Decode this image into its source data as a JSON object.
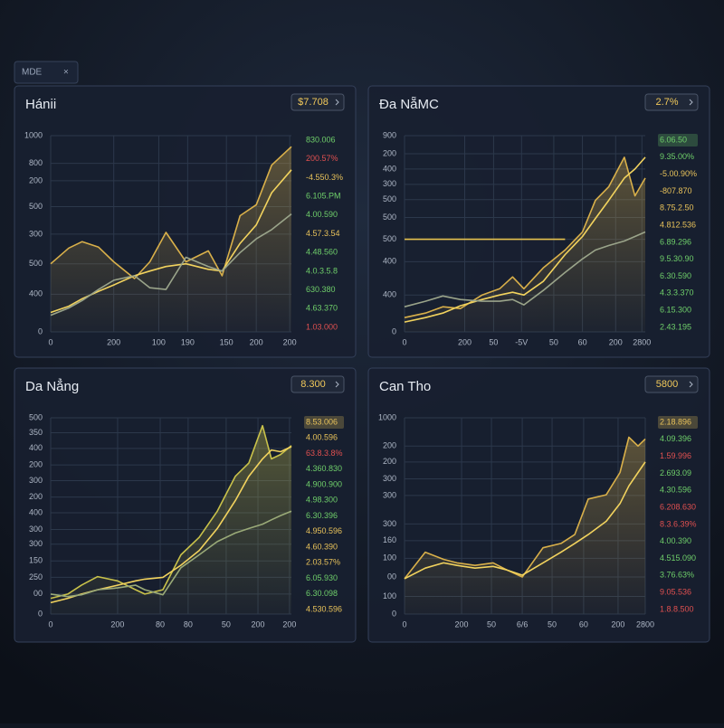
{
  "tab": {
    "label": "MDE",
    "close": "×"
  },
  "chart_data": [
    {
      "type": "line",
      "title": "Hánii",
      "badge": "$7.708",
      "xlim": [
        0,
        1000
      ],
      "ylim": [
        0,
        1000
      ],
      "grid": true,
      "xticks": [
        0,
        {
          "value": 262,
          "label": "200"
        },
        {
          "value": 449,
          "label": "100"
        },
        {
          "value": 569,
          "label": "190"
        },
        {
          "value": 730,
          "label": "150"
        },
        {
          "value": 854,
          "label": "200"
        },
        {
          "value": 993,
          "label": "200"
        }
      ],
      "yticks": [
        0,
        {
          "value": 192,
          "label": "400"
        },
        {
          "value": 347,
          "label": "500"
        },
        {
          "value": 498,
          "label": "300"
        },
        {
          "value": 638,
          "label": "500"
        },
        {
          "value": 770,
          "label": "200"
        },
        {
          "value": 859,
          "label": "800"
        },
        {
          "value": 1000,
          "label": "1000"
        }
      ],
      "x": [
        0,
        75,
        131,
        199,
        262,
        348,
        412,
        479,
        562,
        655,
        712,
        787,
        854,
        918,
        1000
      ],
      "series": [
        {
          "color": "#d9b04a",
          "area": true,
          "values": [
            347,
            427,
            460,
            432,
            357,
            272,
            357,
            507,
            357,
            413,
            286,
            592,
            648,
            850,
            944
          ]
        },
        {
          "color": "#f2d35e",
          "values": [
            99,
            131,
            169,
            207,
            239,
            286,
            310,
            333,
            347,
            319,
            310,
            451,
            545,
            709,
            826
          ]
        },
        {
          "color": "#9aa48a",
          "values": [
            85,
            122,
            160,
            216,
            263,
            286,
            225,
            216,
            380,
            333,
            310,
            404,
            474,
            521,
            601
          ]
        }
      ],
      "side_labels": [
        {
          "text": "830.006",
          "color": "#6fcf6a"
        },
        {
          "text": "200.57%",
          "color": "#e05050"
        },
        {
          "text": "-4.550.3%",
          "color": "#e8c25a"
        },
        {
          "text": "6.105.PM",
          "color": "#6fcf6a"
        },
        {
          "text": "4.00.590",
          "color": "#6fcf6a"
        },
        {
          "text": "4.57.3.54",
          "color": "#e8c25a"
        },
        {
          "text": "4.48.560",
          "color": "#6fcf6a"
        },
        {
          "text": "4.0.3.5.8",
          "color": "#6fcf6a"
        },
        {
          "text": "630.380",
          "color": "#6fcf6a"
        },
        {
          "text": "4.63.370",
          "color": "#6fcf6a"
        },
        {
          "text": "1.03.000",
          "color": "#e05050"
        }
      ]
    },
    {
      "type": "line",
      "title": "Đa NẵMC",
      "badge": "2.7%",
      "xlim": [
        0,
        1000
      ],
      "ylim": [
        0,
        1000
      ],
      "grid": true,
      "xticks": [
        0,
        {
          "value": 250,
          "label": "200"
        },
        {
          "value": 370,
          "label": "50"
        },
        {
          "value": 486,
          "label": "-5V"
        },
        {
          "value": 620,
          "label": "50"
        },
        {
          "value": 739,
          "label": "60"
        },
        {
          "value": 877,
          "label": "200"
        },
        {
          "value": 986,
          "label": "2800"
        }
      ],
      "yticks": [
        0,
        {
          "value": 188,
          "label": "400"
        },
        {
          "value": 358,
          "label": "400"
        },
        {
          "value": 472,
          "label": "500"
        },
        {
          "value": 583,
          "label": "500"
        },
        {
          "value": 674,
          "label": "500"
        },
        {
          "value": 752,
          "label": "300"
        },
        {
          "value": 830,
          "label": "400"
        },
        {
          "value": 908,
          "label": "200"
        },
        {
          "value": 1000,
          "label": "900"
        }
      ],
      "x": [
        0,
        87,
        159,
        232,
        322,
        395,
        449,
        496,
        576,
        667,
        739,
        793,
        848,
        913,
        957,
        1000
      ],
      "series": [
        {
          "color": "#d9b04a",
          "area": true,
          "values": [
            73,
            96,
            128,
            119,
            188,
            220,
            280,
            220,
            326,
            417,
            509,
            670,
            739,
            890,
            693,
            784
          ]
        },
        {
          "color": "#f2d35e",
          "values": [
            50,
            73,
            96,
            133,
            165,
            188,
            202,
            188,
            257,
            394,
            486,
            578,
            670,
            784,
            830,
            890
          ]
        },
        {
          "color": "#9aa48a",
          "values": [
            128,
            156,
            183,
            165,
            156,
            156,
            165,
            138,
            211,
            303,
            372,
            417,
            440,
            463,
            486,
            509
          ]
        },
        {
          "color": "#e6c24e",
          "values": [
            472,
            472,
            472,
            472,
            472,
            472,
            472,
            472,
            472,
            472,
            null,
            null,
            null,
            null,
            null,
            null
          ]
        }
      ],
      "side_labels": [
        {
          "text": "6.06.50",
          "color": "#6fcf6a",
          "boxed": true
        },
        {
          "text": "9.35.00%",
          "color": "#6fcf6a"
        },
        {
          "text": "-5.00.90%",
          "color": "#e8c25a"
        },
        {
          "text": "-807.870",
          "color": "#e8c25a"
        },
        {
          "text": "8.75.2.50",
          "color": "#e8c25a"
        },
        {
          "text": "4.812.536",
          "color": "#e8c25a"
        },
        {
          "text": "6.89.296",
          "color": "#6fcf6a"
        },
        {
          "text": "9.5.30.90",
          "color": "#6fcf6a"
        },
        {
          "text": "6.30.590",
          "color": "#6fcf6a"
        },
        {
          "text": "4.3.3.370",
          "color": "#6fcf6a"
        },
        {
          "text": "6.15.300",
          "color": "#6fcf6a"
        },
        {
          "text": "2.43.195",
          "color": "#6fcf6a"
        }
      ]
    },
    {
      "type": "line",
      "title": "Da Nẳng",
      "badge": "8.300",
      "xlim": [
        0,
        1000
      ],
      "ylim": [
        0,
        1000
      ],
      "grid": true,
      "xticks": [
        0,
        {
          "value": 278,
          "label": "200"
        },
        {
          "value": 455,
          "label": "80"
        },
        {
          "value": 571,
          "label": "80"
        },
        {
          "value": 729,
          "label": "50"
        },
        {
          "value": 861,
          "label": "200"
        },
        {
          "value": 992,
          "label": "200"
        }
      ],
      "yticks": [
        0,
        {
          "value": 102,
          "label": "00"
        },
        {
          "value": 187,
          "label": "250"
        },
        {
          "value": 271,
          "label": "150"
        },
        {
          "value": 356,
          "label": "300"
        },
        {
          "value": 431,
          "label": "300"
        },
        {
          "value": 516,
          "label": "400"
        },
        {
          "value": 596,
          "label": "200"
        },
        {
          "value": 680,
          "label": "300"
        },
        {
          "value": 760,
          "label": "200"
        },
        {
          "value": 844,
          "label": "400"
        },
        {
          "value": 924,
          "label": "350"
        },
        {
          "value": 1000,
          "label": "500"
        }
      ],
      "x": [
        0,
        71,
        128,
        195,
        278,
        353,
        391,
        466,
        541,
        617,
        692,
        767,
        823,
        880,
        917,
        955,
        1000
      ],
      "series": [
        {
          "color": "#c9c24a",
          "area": true,
          "values": [
            80,
            102,
            147,
            191,
            169,
            124,
            102,
            124,
            302,
            391,
            524,
            702,
            769,
            960,
            791,
            813,
            858
          ]
        },
        {
          "color": "#f2d35e",
          "values": [
            58,
            80,
            102,
            124,
            147,
            169,
            178,
            187,
            249,
            324,
            436,
            578,
            702,
            791,
            836,
            827,
            853
          ]
        },
        {
          "color": "#9aaa78",
          "values": [
            102,
            89,
            98,
            124,
            133,
            147,
            124,
            98,
            236,
            302,
            369,
            413,
            436,
            458,
            480,
            502,
            524
          ]
        }
      ],
      "side_labels": [
        {
          "text": "8.53.006",
          "color": "#e8c25a",
          "boxed": true
        },
        {
          "text": "4.00.596",
          "color": "#e8c25a"
        },
        {
          "text": "63.8.3.8%",
          "color": "#e05050"
        },
        {
          "text": "4.360.830",
          "color": "#6fcf6a"
        },
        {
          "text": "4.900.900",
          "color": "#6fcf6a"
        },
        {
          "text": "4.98.300",
          "color": "#6fcf6a"
        },
        {
          "text": "6.30.396",
          "color": "#6fcf6a"
        },
        {
          "text": "4.950.596",
          "color": "#e8c25a"
        },
        {
          "text": "4.60.390",
          "color": "#e8c25a"
        },
        {
          "text": "2.03.57%",
          "color": "#e8c25a"
        },
        {
          "text": "6.05.930",
          "color": "#6fcf6a"
        },
        {
          "text": "6.30.098",
          "color": "#6fcf6a"
        },
        {
          "text": "4.530.596",
          "color": "#e8c25a"
        }
      ]
    },
    {
      "type": "line",
      "title": "Can Tho",
      "badge": "5800",
      "xlim": [
        0,
        1000
      ],
      "ylim": [
        0,
        1000
      ],
      "grid": true,
      "xticks": [
        0,
        {
          "value": 237,
          "label": "200"
        },
        {
          "value": 361,
          "label": "50"
        },
        {
          "value": 489,
          "label": "6/6"
        },
        {
          "value": 613,
          "label": "50"
        },
        {
          "value": 744,
          "label": "60"
        },
        {
          "value": 887,
          "label": "200"
        },
        {
          "value": 1000,
          "label": "2800"
        }
      ],
      "yticks": [
        0,
        {
          "value": 90,
          "label": "100"
        },
        {
          "value": 189,
          "label": "00"
        },
        {
          "value": 284,
          "label": "100"
        },
        {
          "value": 374,
          "label": "160"
        },
        {
          "value": 459,
          "label": "300"
        },
        {
          "value": 604,
          "label": "300"
        },
        {
          "value": 689,
          "label": "300"
        },
        {
          "value": 775,
          "label": "200"
        },
        {
          "value": 856,
          "label": "200"
        },
        {
          "value": 1000,
          "label": "1000"
        }
      ],
      "x": [
        0,
        86,
        162,
        218,
        293,
        368,
        425,
        489,
        575,
        650,
        707,
        763,
        838,
        895,
        932,
        970,
        1000
      ],
      "series": [
        {
          "color": "#d9b04a",
          "area": true,
          "values": [
            180,
            315,
            279,
            261,
            248,
            261,
            225,
            189,
            338,
            360,
            405,
            586,
            608,
            721,
            901,
            856,
            892
          ]
        },
        {
          "color": "#f2d35e",
          "values": [
            180,
            234,
            261,
            248,
            234,
            243,
            225,
            198,
            261,
            315,
            360,
            405,
            473,
            563,
            653,
            721,
            775
          ]
        }
      ],
      "side_labels": [
        {
          "text": "2.18.896",
          "color": "#e8c25a",
          "boxed": true
        },
        {
          "text": "4.09.396",
          "color": "#6fcf6a"
        },
        {
          "text": "1.59.996",
          "color": "#e05050"
        },
        {
          "text": "2.693.09",
          "color": "#6fcf6a"
        },
        {
          "text": "4.30.596",
          "color": "#6fcf6a"
        },
        {
          "text": "6.208.630",
          "color": "#e05050"
        },
        {
          "text": "8.3.6.39%",
          "color": "#e05050"
        },
        {
          "text": "4.00.390",
          "color": "#6fcf6a"
        },
        {
          "text": "4.515.090",
          "color": "#6fcf6a"
        },
        {
          "text": "3.76.63%",
          "color": "#6fcf6a"
        },
        {
          "text": "9.05.536",
          "color": "#e05050"
        },
        {
          "text": "1.8.8.500",
          "color": "#e05050"
        }
      ]
    }
  ]
}
